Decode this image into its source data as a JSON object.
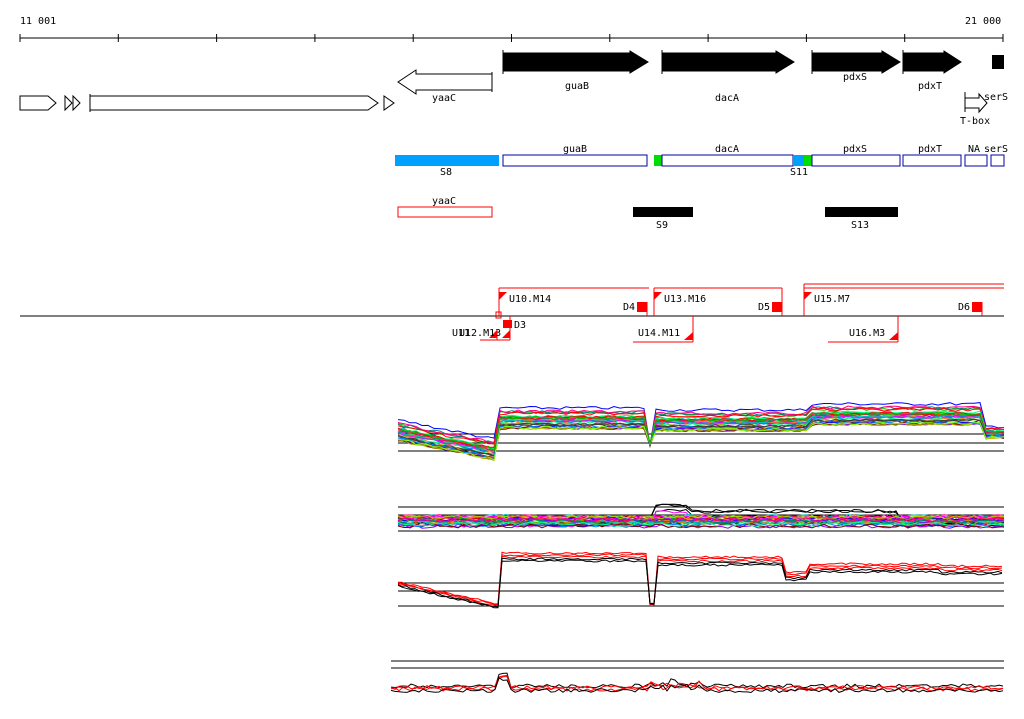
{
  "ruler": {
    "start_label": "11 001",
    "end_label": "21 000"
  },
  "genes": [
    {
      "id": "guab",
      "label": "guaB",
      "strand": "+",
      "fill": "black"
    },
    {
      "id": "daca",
      "label": "dacA",
      "strand": "+",
      "fill": "black"
    },
    {
      "id": "pdxs",
      "label": "pdxS",
      "strand": "+",
      "fill": "black"
    },
    {
      "id": "pdxt",
      "label": "pdxT",
      "strand": "+",
      "fill": "black"
    },
    {
      "id": "yaac",
      "label": "yaaC",
      "strand": "-",
      "fill": "white"
    },
    {
      "id": "tbox",
      "label": "T-box",
      "strand": "+",
      "fill": "white"
    },
    {
      "id": "sers",
      "label": "serS",
      "strand": "+",
      "fill": "white"
    }
  ],
  "segments": [
    {
      "id": "s8",
      "label": "S8",
      "color": "#00a0ff"
    },
    {
      "id": "s11",
      "label": "S11",
      "color": "#00a0ff"
    },
    {
      "id": "s9",
      "label": "S9",
      "color": "#000000"
    },
    {
      "id": "s13",
      "label": "S13",
      "color": "#000000"
    }
  ],
  "transcript_labels": [
    {
      "id": "guab",
      "label": "guaB"
    },
    {
      "id": "daca",
      "label": "dacA"
    },
    {
      "id": "pdxs",
      "label": "pdxS"
    },
    {
      "id": "pdxt",
      "label": "pdxT"
    },
    {
      "id": "na",
      "label": "NA"
    },
    {
      "id": "sers",
      "label": "serS"
    },
    {
      "id": "yaac",
      "label": "yaaC"
    }
  ],
  "upshifts": [
    {
      "id": "u10",
      "label": "U10.M14"
    },
    {
      "id": "u13",
      "label": "U13.M16"
    },
    {
      "id": "u15",
      "label": "U15.M7"
    },
    {
      "id": "u14",
      "label": "U14.M11"
    },
    {
      "id": "u16",
      "label": "U16.M3"
    },
    {
      "id": "u11",
      "label": "U11"
    },
    {
      "id": "u12",
      "label": "U12.M13"
    }
  ],
  "downshifts": [
    {
      "id": "d3",
      "label": "D3"
    },
    {
      "id": "d4",
      "label": "D4"
    },
    {
      "id": "d5",
      "label": "D5"
    },
    {
      "id": "d6",
      "label": "D6"
    }
  ],
  "colors": {
    "accent_red": "#ff0000",
    "segment_blue": "#00a0ff",
    "segment_green": "#00dd00",
    "gene_outline_blue": "#0000a0"
  },
  "tracks": [
    "expression-profiles-all-conditions",
    "expression-profiles-deviation",
    "expression-profiles-selected",
    "expression-profiles-derivative"
  ]
}
